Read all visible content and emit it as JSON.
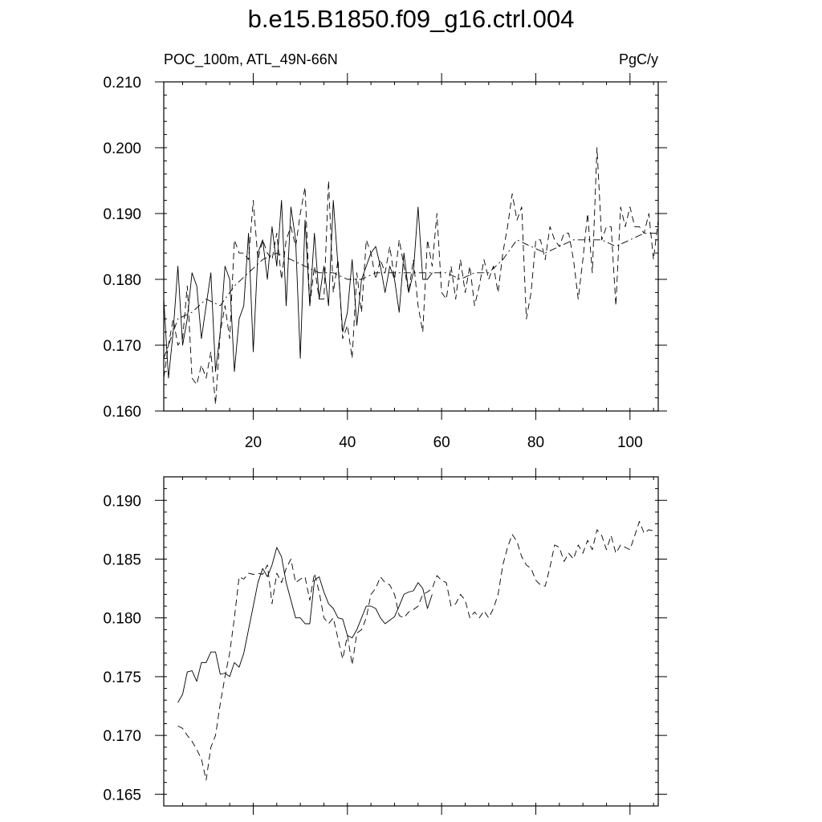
{
  "title": "b.e15.B1850.f09_g16.ctrl.004",
  "left_label": "POC_100m, ATL_49N-66N",
  "right_label": "PgC/y",
  "chart_data": [
    {
      "type": "line",
      "title": "b.e15.B1850.f09_g16.ctrl.004",
      "xlabel": "",
      "ylabel": "",
      "xlim": [
        1,
        106
      ],
      "ylim": [
        0.16,
        0.21
      ],
      "yticks": [
        0.16,
        0.17,
        0.18,
        0.19,
        0.2,
        0.21
      ],
      "ytick_labels": [
        "0.160",
        "0.170",
        "0.180",
        "0.190",
        "0.200",
        "0.210"
      ],
      "xticks": [
        20,
        40,
        60,
        80,
        100
      ],
      "xtick_labels": [
        "20",
        "40",
        "60",
        "80",
        "100"
      ],
      "series": [
        {
          "style": "solid",
          "x": [
            1,
            2,
            3,
            4,
            5,
            6,
            7,
            8,
            9,
            10,
            11,
            12,
            13,
            14,
            15,
            16,
            17,
            18,
            19,
            20,
            21,
            22,
            23,
            24,
            25,
            26,
            27,
            28,
            29,
            30,
            31,
            32,
            33,
            34,
            35,
            36,
            37,
            38,
            39,
            40,
            41,
            42,
            43,
            44,
            45,
            46,
            47,
            48,
            49,
            50,
            51,
            52,
            53,
            54,
            55,
            56,
            57,
            58
          ],
          "y": [
            0.177,
            0.165,
            0.172,
            0.182,
            0.17,
            0.174,
            0.181,
            0.179,
            0.171,
            0.176,
            0.181,
            0.166,
            0.172,
            0.182,
            0.18,
            0.166,
            0.174,
            0.176,
            0.187,
            0.169,
            0.184,
            0.186,
            0.18,
            0.188,
            0.182,
            0.192,
            0.176,
            0.191,
            0.186,
            0.168,
            0.189,
            0.176,
            0.187,
            0.177,
            0.182,
            0.176,
            0.192,
            0.182,
            0.172,
            0.175,
            0.183,
            0.173,
            0.18,
            0.182,
            0.184,
            0.185,
            0.182,
            0.178,
            0.182,
            0.18,
            0.175,
            0.184,
            0.178,
            0.181,
            0.191,
            0.18,
            0.18,
            0.181
          ]
        },
        {
          "style": "dashed",
          "x": [
            1,
            2,
            3,
            4,
            5,
            6,
            7,
            8,
            9,
            10,
            11,
            12,
            13,
            14,
            15,
            16,
            17,
            18,
            19,
            20,
            21,
            22,
            23,
            24,
            25,
            26,
            27,
            28,
            29,
            30,
            31,
            32,
            33,
            34,
            35,
            36,
            37,
            38,
            39,
            40,
            41,
            42,
            43,
            44,
            45,
            46,
            47,
            48,
            49,
            50,
            51,
            52,
            53,
            54,
            55,
            56,
            57,
            58,
            59,
            60,
            61,
            62,
            63,
            64,
            65,
            66,
            67,
            68,
            69,
            70,
            71,
            72,
            73,
            74,
            75,
            76,
            77,
            78,
            79,
            80,
            81,
            82,
            83,
            84,
            85,
            86,
            87,
            88,
            89,
            90,
            91,
            92,
            93,
            94,
            95,
            96,
            97,
            98,
            99,
            100,
            101,
            102,
            103,
            104,
            105,
            106
          ],
          "y": [
            0.165,
            0.17,
            0.174,
            0.17,
            0.171,
            0.179,
            0.165,
            0.164,
            0.167,
            0.165,
            0.169,
            0.161,
            0.172,
            0.176,
            0.171,
            0.186,
            0.184,
            0.184,
            0.183,
            0.192,
            0.183,
            0.186,
            0.184,
            0.183,
            0.187,
            0.18,
            0.186,
            0.188,
            0.185,
            0.19,
            0.194,
            0.176,
            0.182,
            0.177,
            0.177,
            0.195,
            0.178,
            0.183,
            0.171,
            0.173,
            0.168,
            0.181,
            0.175,
            0.186,
            0.184,
            0.18,
            0.183,
            0.181,
            0.185,
            0.18,
            0.186,
            0.182,
            0.178,
            0.183,
            0.176,
            0.172,
            0.186,
            0.182,
            0.19,
            0.178,
            0.177,
            0.182,
            0.177,
            0.183,
            0.178,
            0.182,
            0.176,
            0.179,
            0.183,
            0.18,
            0.182,
            0.178,
            0.184,
            0.188,
            0.193,
            0.189,
            0.191,
            0.174,
            0.178,
            0.186,
            0.186,
            0.183,
            0.188,
            0.186,
            0.185,
            0.187,
            0.187,
            0.183,
            0.177,
            0.183,
            0.19,
            0.181,
            0.2,
            0.186,
            0.188,
            0.188,
            0.176,
            0.191,
            0.188,
            0.191,
            0.188,
            0.188,
            0.187,
            0.19,
            0.183,
            0.189
          ]
        },
        {
          "style": "dashdot",
          "x": [
            1,
            4,
            7,
            10,
            13,
            16,
            19,
            22,
            25,
            28,
            31,
            34,
            37,
            40,
            43,
            46,
            49,
            52,
            55,
            58,
            61,
            64,
            67,
            70,
            73,
            76,
            79,
            82,
            85,
            88,
            91,
            94,
            97,
            100,
            103,
            106
          ],
          "y": [
            0.168,
            0.174,
            0.175,
            0.177,
            0.176,
            0.179,
            0.181,
            0.183,
            0.184,
            0.183,
            0.182,
            0.181,
            0.181,
            0.18,
            0.18,
            0.181,
            0.181,
            0.181,
            0.181,
            0.181,
            0.181,
            0.18,
            0.181,
            0.181,
            0.183,
            0.186,
            0.185,
            0.184,
            0.185,
            0.186,
            0.186,
            0.186,
            0.185,
            0.186,
            0.187,
            0.187
          ]
        }
      ]
    },
    {
      "type": "line",
      "xlabel": "",
      "ylabel": "",
      "xlim": [
        1,
        106
      ],
      "ylim": [
        0.164,
        0.192
      ],
      "yticks": [
        0.165,
        0.17,
        0.175,
        0.18,
        0.185,
        0.19
      ],
      "ytick_labels": [
        "0.165",
        "0.170",
        "0.175",
        "0.180",
        "0.185",
        "0.190"
      ],
      "xticks": [
        20,
        40,
        60,
        80,
        100
      ],
      "series": [
        {
          "style": "solid",
          "x": [
            4,
            5,
            6,
            7,
            8,
            9,
            10,
            11,
            12,
            13,
            14,
            15,
            16,
            17,
            18,
            19,
            20,
            21,
            22,
            23,
            24,
            25,
            26,
            27,
            28,
            29,
            30,
            31,
            32,
            33,
            34,
            35,
            36,
            37,
            38,
            39,
            40,
            41,
            42,
            43,
            44,
            45,
            46,
            47,
            48,
            49,
            50,
            51,
            52,
            53,
            54,
            55,
            56,
            57,
            58
          ],
          "y": [
            0.1728,
            0.1735,
            0.1754,
            0.1755,
            0.1746,
            0.1762,
            0.1762,
            0.1771,
            0.1771,
            0.1752,
            0.1753,
            0.175,
            0.1762,
            0.1758,
            0.177,
            0.179,
            0.181,
            0.183,
            0.1842,
            0.1835,
            0.1845,
            0.186,
            0.1852,
            0.183,
            0.1815,
            0.18,
            0.18,
            0.1795,
            0.1795,
            0.1832,
            0.1835,
            0.1822,
            0.1812,
            0.1808,
            0.18,
            0.1799,
            0.1785,
            0.1783,
            0.179,
            0.18,
            0.181,
            0.181,
            0.1808,
            0.18,
            0.1795,
            0.1798,
            0.1801,
            0.181,
            0.182,
            0.1822,
            0.1823,
            0.183,
            0.1825,
            0.1808,
            0.182
          ]
        },
        {
          "style": "dashed",
          "x": [
            4,
            5,
            6,
            7,
            8,
            9,
            10,
            11,
            12,
            13,
            14,
            15,
            16,
            17,
            18,
            19,
            20,
            21,
            22,
            23,
            24,
            25,
            26,
            27,
            28,
            29,
            30,
            31,
            32,
            33,
            34,
            35,
            36,
            37,
            38,
            39,
            40,
            41,
            42,
            43,
            44,
            45,
            46,
            47,
            48,
            49,
            50,
            51,
            52,
            53,
            54,
            55,
            56,
            57,
            58,
            59,
            60,
            61,
            62,
            63,
            64,
            65,
            66,
            67,
            68,
            69,
            70,
            71,
            72,
            73,
            74,
            75,
            76,
            77,
            78,
            79,
            80,
            81,
            82,
            83,
            84,
            85,
            86,
            87,
            88,
            89,
            90,
            91,
            92,
            93,
            94,
            95,
            96,
            97,
            98,
            99,
            100,
            101,
            102,
            103,
            104,
            105
          ],
          "y": [
            0.1708,
            0.1706,
            0.17,
            0.1695,
            0.1688,
            0.168,
            0.1662,
            0.169,
            0.17,
            0.1727,
            0.175,
            0.177,
            0.18,
            0.1835,
            0.1833,
            0.1838,
            0.1837,
            0.1838,
            0.1837,
            0.1845,
            0.1812,
            0.1838,
            0.183,
            0.1842,
            0.185,
            0.183,
            0.1833,
            0.1835,
            0.1815,
            0.1838,
            0.1822,
            0.18,
            0.1795,
            0.18,
            0.1782,
            0.1765,
            0.1785,
            0.176,
            0.1787,
            0.179,
            0.18,
            0.182,
            0.1825,
            0.1835,
            0.183,
            0.1828,
            0.182,
            0.1802,
            0.18,
            0.1805,
            0.1807,
            0.181,
            0.182,
            0.1822,
            0.1825,
            0.1836,
            0.1832,
            0.183,
            0.181,
            0.1812,
            0.182,
            0.1815,
            0.18,
            0.1805,
            0.18,
            0.1806,
            0.18,
            0.1808,
            0.182,
            0.1845,
            0.186,
            0.1871,
            0.1865,
            0.1852,
            0.1845,
            0.1842,
            0.1832,
            0.1828,
            0.1827,
            0.1843,
            0.1862,
            0.186,
            0.1848,
            0.1855,
            0.185,
            0.1862,
            0.1855,
            0.1866,
            0.1858,
            0.1875,
            0.187,
            0.1858,
            0.187,
            0.1855,
            0.1862,
            0.186,
            0.1858,
            0.187,
            0.1882,
            0.1872,
            0.1875,
            0.1874
          ]
        }
      ]
    }
  ]
}
